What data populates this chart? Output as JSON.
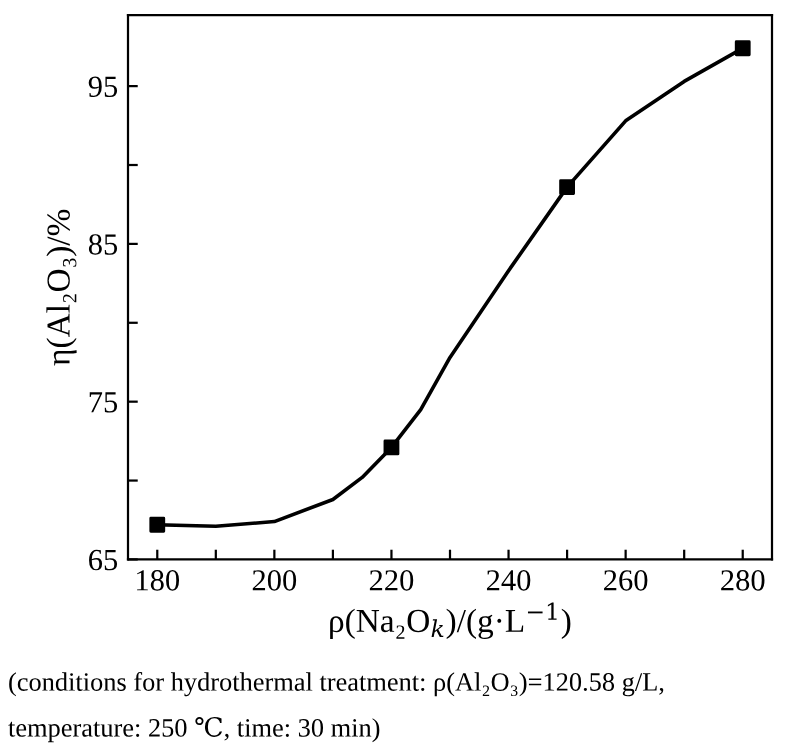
{
  "chart_data": {
    "type": "line",
    "xlabel": "ρ(Na₂O$_{k}$)/(g·L$^{−1}$)",
    "ylabel": "η(Al₂O₃)/%",
    "xlim": [
      175,
      285
    ],
    "ylim": [
      65,
      99.5
    ],
    "xticks": [
      180,
      {
        "value": 190,
        "label": null
      },
      200,
      {
        "value": 210,
        "label": null
      },
      220,
      {
        "value": 230,
        "label": null
      },
      240,
      {
        "value": 250,
        "label": null
      },
      260,
      {
        "value": 270,
        "label": null
      },
      280
    ],
    "yticks": [
      65,
      {
        "value": 70,
        "label": null
      },
      75,
      {
        "value": 80,
        "label": null
      },
      85,
      {
        "value": 90,
        "label": null
      },
      95
    ],
    "grid": false,
    "legend": false,
    "series": [
      {
        "color": "#000000",
        "marker": "none",
        "line_style": "solid",
        "x": [
          180,
          190,
          200,
          210,
          215,
          220,
          225,
          230,
          240,
          250,
          260,
          270,
          280
        ],
        "values": [
          67.2,
          67.1,
          67.4,
          68.8,
          70.2,
          72.1,
          74.5,
          77.8,
          83.3,
          88.6,
          92.8,
          95.3,
          97.4
        ]
      },
      {
        "type": "scatter",
        "color": "#000000",
        "marker": "square",
        "x": [
          180,
          220,
          250,
          280
        ],
        "values": [
          67.2,
          72.1,
          88.6,
          97.4
        ]
      }
    ],
    "annotations": [
      "(conditions for hydrothermal treatment: ρ(Al₂O₃)=120.58 g/L,",
      "temperature: 250 ℃, time: 30 min)"
    ]
  }
}
